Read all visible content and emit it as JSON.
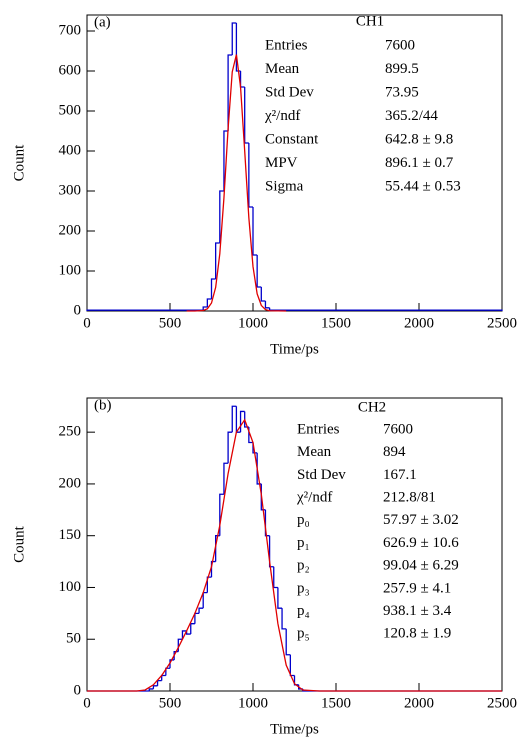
{
  "chart_data": [
    {
      "type": "histogram",
      "panel_label": "(a)",
      "x_label": "Time/ps",
      "y_label": "Count",
      "xlim": [
        0,
        2500
      ],
      "ylim": [
        0,
        740
      ],
      "xticks": [
        0,
        500,
        1000,
        1500,
        2000,
        2500
      ],
      "yticks": [
        0,
        100,
        200,
        300,
        400,
        500,
        600,
        700
      ],
      "color": "#0000cc",
      "bins": [
        0,
        700,
        725,
        750,
        775,
        800,
        825,
        850,
        875,
        900,
        925,
        950,
        975,
        1000,
        1025,
        1050,
        1075,
        1100,
        2500
      ],
      "values": [
        2,
        10,
        30,
        80,
        170,
        300,
        450,
        640,
        720,
        600,
        560,
        420,
        260,
        140,
        60,
        25,
        8,
        2
      ],
      "fit": {
        "color": "#e00000",
        "x": [
          600,
          650,
          700,
          725,
          750,
          775,
          800,
          825,
          850,
          875,
          900,
          925,
          950,
          975,
          1000,
          1025,
          1050,
          1075,
          1100,
          1200
        ],
        "values": [
          0,
          0,
          1.2,
          5.5,
          20,
          59,
          143,
          283,
          456,
          598,
          641,
          560,
          400,
          233,
          111,
          43,
          14,
          3.5,
          0.7,
          0
        ]
      },
      "stats": {
        "title": "CH1",
        "rows": [
          [
            "Entries",
            "7600"
          ],
          [
            "Mean",
            "899.5"
          ],
          [
            "Std Dev",
            "73.95"
          ],
          [
            "χ²/ndf",
            "365.2/44"
          ],
          [
            "Constant",
            "642.8 ± 9.8"
          ],
          [
            "MPV",
            "896.1 ± 0.7"
          ],
          [
            "Sigma",
            "55.44 ± 0.53"
          ]
        ]
      }
    },
    {
      "type": "histogram",
      "panel_label": "(b)",
      "x_label": "Time/ps",
      "y_label": "Count",
      "xlim": [
        0,
        2500
      ],
      "ylim": [
        0,
        283
      ],
      "xticks": [
        0,
        500,
        1000,
        1500,
        2000,
        2500
      ],
      "yticks": [
        0,
        50,
        100,
        150,
        200,
        250
      ],
      "color": "#0000cc",
      "bins": [
        0,
        375,
        400,
        425,
        450,
        475,
        500,
        525,
        550,
        575,
        600,
        625,
        650,
        675,
        700,
        725,
        750,
        775,
        800,
        825,
        850,
        875,
        900,
        925,
        950,
        975,
        1000,
        1025,
        1050,
        1075,
        1100,
        1125,
        1150,
        1175,
        1200,
        1225,
        1250,
        1275,
        1300,
        2500
      ],
      "values": [
        0,
        2,
        5,
        10,
        15,
        22,
        30,
        38,
        50,
        58,
        55,
        65,
        75,
        80,
        95,
        110,
        125,
        150,
        190,
        220,
        250,
        275,
        250,
        270,
        255,
        240,
        230,
        200,
        175,
        150,
        120,
        100,
        80,
        60,
        35,
        15,
        6,
        2,
        0
      ],
      "fit": {
        "color": "#e00000",
        "x": [
          0,
          300,
          350,
          400,
          450,
          500,
          550,
          600,
          650,
          700,
          750,
          800,
          850,
          900,
          950,
          1000,
          1050,
          1100,
          1150,
          1200,
          1250,
          1300,
          1400,
          2500
        ],
        "values": [
          0,
          0,
          1,
          6,
          15,
          27,
          42,
          58,
          75,
          95,
          120,
          160,
          210,
          250,
          262,
          240,
          190,
          125,
          65,
          25,
          7,
          1,
          0,
          0
        ]
      },
      "stats": {
        "title": "CH2",
        "rows": [
          [
            "Entries",
            "7600"
          ],
          [
            "Mean",
            "894"
          ],
          [
            "Std Dev",
            "167.1"
          ],
          [
            "χ²/ndf",
            "212.8/81"
          ],
          [
            "p₀",
            "57.97 ± 3.02"
          ],
          [
            "p₁",
            "626.9 ± 10.6"
          ],
          [
            "p₂",
            "99.04 ± 6.29"
          ],
          [
            "p₃",
            "257.9 ± 4.1"
          ],
          [
            "p₄",
            "938.1 ± 3.4"
          ],
          [
            "p₅",
            "120.8 ± 1.9"
          ]
        ]
      }
    }
  ]
}
